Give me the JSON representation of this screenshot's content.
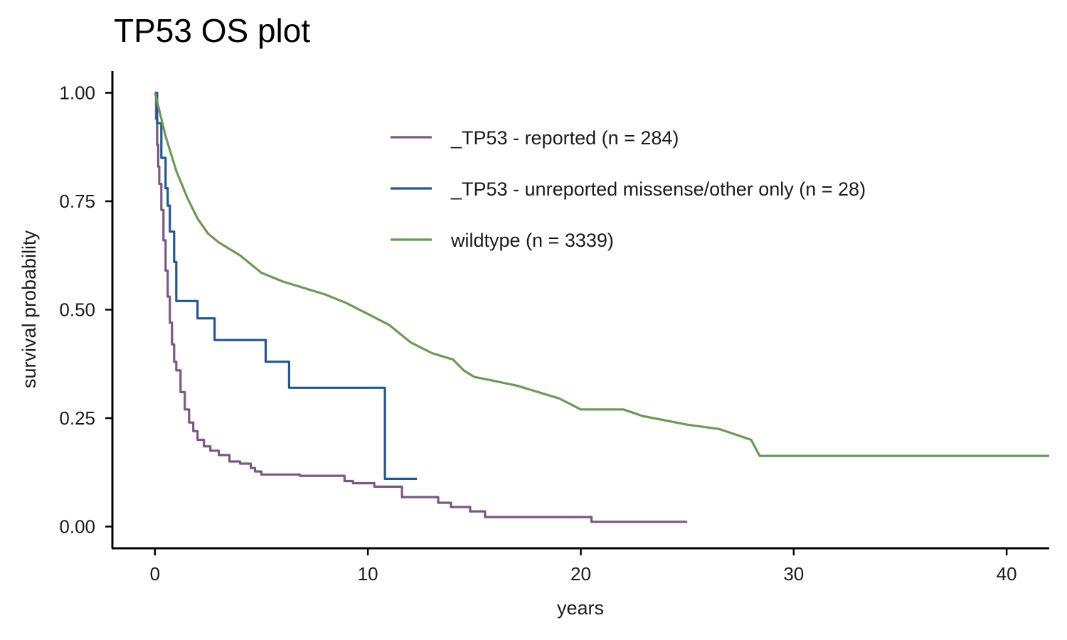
{
  "chart_data": {
    "type": "line",
    "title": "TP53 OS plot",
    "xlabel": "years",
    "ylabel": "survival probability",
    "xlim": [
      -2,
      42
    ],
    "ylim": [
      -0.05,
      1.05
    ],
    "xticks": [
      0,
      10,
      20,
      30,
      40
    ],
    "xtick_labels": [
      "0",
      "10",
      "20",
      "30",
      "40"
    ],
    "yticks": [
      0,
      0.25,
      0.5,
      0.75,
      1.0
    ],
    "ytick_labels": [
      "0.00",
      "0.25",
      "0.50",
      "0.75",
      "1.00"
    ],
    "grid": false,
    "legend_position": "top-right inside plot",
    "series": [
      {
        "name": "_TP53 - reported (n = 284)",
        "color": "#7b5883",
        "step": true,
        "x": [
          0,
          0.05,
          0.1,
          0.15,
          0.2,
          0.3,
          0.4,
          0.5,
          0.6,
          0.7,
          0.8,
          0.9,
          1.0,
          1.2,
          1.4,
          1.6,
          1.8,
          2.0,
          2.3,
          2.6,
          3.0,
          3.5,
          4.0,
          4.5,
          4.7,
          5.0,
          6.8,
          8.9,
          9.3,
          10.3,
          11.6,
          13.3,
          13.9,
          14.8,
          15.5,
          20.5,
          25.0
        ],
        "y": [
          1.0,
          0.94,
          0.88,
          0.83,
          0.79,
          0.73,
          0.66,
          0.59,
          0.53,
          0.47,
          0.42,
          0.38,
          0.36,
          0.31,
          0.27,
          0.24,
          0.22,
          0.2,
          0.185,
          0.175,
          0.165,
          0.15,
          0.145,
          0.135,
          0.127,
          0.12,
          0.117,
          0.105,
          0.1,
          0.092,
          0.068,
          0.055,
          0.045,
          0.035,
          0.022,
          0.011,
          0.011
        ]
      },
      {
        "name": "_TP53 - unreported missense/other only (n = 28)",
        "color": "#1f5797",
        "step": true,
        "x": [
          0,
          0.1,
          0.3,
          0.5,
          0.6,
          0.7,
          0.9,
          1.0,
          2.0,
          2.8,
          5.2,
          6.3,
          10.8,
          12.3
        ],
        "y": [
          1.0,
          0.93,
          0.85,
          0.78,
          0.74,
          0.68,
          0.61,
          0.52,
          0.48,
          0.43,
          0.38,
          0.32,
          0.11,
          0.11
        ]
      },
      {
        "name": "wildtype (n = 3339)",
        "color": "#6a9a55",
        "step": false,
        "x": [
          0,
          0.2,
          0.5,
          1.0,
          1.5,
          2.0,
          2.5,
          3.0,
          4.0,
          5.0,
          6.0,
          7.0,
          8.0,
          9.0,
          10.0,
          11.0,
          12.0,
          13.0,
          14.0,
          14.5,
          15.0,
          16.0,
          17.0,
          18.0,
          19.0,
          20.0,
          21.0,
          22.0,
          22.9,
          25.0,
          26.5,
          28.0,
          28.4,
          30.0,
          35.0,
          42.0
        ],
        "y": [
          1.0,
          0.96,
          0.9,
          0.82,
          0.76,
          0.71,
          0.675,
          0.655,
          0.625,
          0.585,
          0.565,
          0.55,
          0.535,
          0.515,
          0.49,
          0.465,
          0.425,
          0.4,
          0.385,
          0.36,
          0.345,
          0.335,
          0.325,
          0.31,
          0.295,
          0.27,
          0.27,
          0.27,
          0.255,
          0.235,
          0.225,
          0.2,
          0.163,
          0.163,
          0.163,
          0.163
        ]
      }
    ]
  }
}
